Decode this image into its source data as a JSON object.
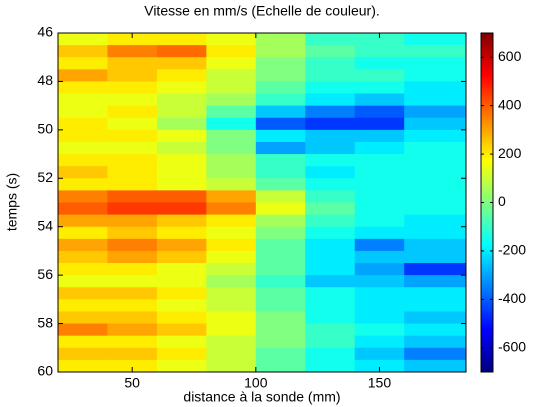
{
  "chart_data": {
    "type": "heatmap",
    "title": "Vitesse en mm/s (Echelle de couleur).",
    "x_label": "distance à la sonde (mm)",
    "y_label": "temps (s)",
    "colormap": "jet",
    "x": [
      30,
      50,
      70,
      90,
      110,
      130,
      150,
      170
    ],
    "y": [
      46.25,
      46.75,
      47.25,
      47.75,
      48.25,
      48.75,
      49.25,
      49.75,
      50.25,
      50.75,
      51.25,
      51.75,
      52.25,
      52.75,
      53.25,
      53.75,
      54.25,
      54.75,
      55.25,
      55.75,
      56.25,
      56.75,
      57.25,
      57.75,
      58.25,
      58.75,
      59.25,
      59.75
    ],
    "values": [
      [
        150,
        200,
        200,
        150,
        50,
        -100,
        -100,
        -150
      ],
      [
        250,
        350,
        380,
        200,
        50,
        -50,
        -100,
        -100
      ],
      [
        200,
        250,
        250,
        150,
        0,
        -100,
        -150,
        -150
      ],
      [
        300,
        250,
        200,
        100,
        0,
        -100,
        -100,
        -150
      ],
      [
        200,
        200,
        150,
        100,
        -50,
        -150,
        -150,
        -200
      ],
      [
        150,
        150,
        100,
        50,
        -100,
        -200,
        -250,
        -200
      ],
      [
        150,
        200,
        100,
        -50,
        -250,
        -350,
        -400,
        -300
      ],
      [
        200,
        150,
        50,
        -150,
        -400,
        -450,
        -450,
        -250
      ],
      [
        200,
        200,
        150,
        0,
        -200,
        -250,
        -250,
        -200
      ],
      [
        150,
        150,
        100,
        0,
        -300,
        -250,
        -200,
        -150
      ],
      [
        200,
        200,
        150,
        50,
        -100,
        -150,
        -150,
        -150
      ],
      [
        250,
        200,
        150,
        50,
        -100,
        -200,
        -150,
        -150
      ],
      [
        200,
        200,
        150,
        100,
        -50,
        -150,
        -150,
        -150
      ],
      [
        350,
        400,
        400,
        300,
        100,
        -100,
        -150,
        -150
      ],
      [
        400,
        450,
        450,
        350,
        150,
        -50,
        -150,
        -150
      ],
      [
        300,
        300,
        250,
        200,
        50,
        -100,
        -150,
        -200
      ],
      [
        200,
        250,
        200,
        150,
        0,
        -150,
        -200,
        -200
      ],
      [
        300,
        350,
        300,
        200,
        -50,
        -200,
        -350,
        -250
      ],
      [
        250,
        300,
        250,
        150,
        -50,
        -200,
        -250,
        -250
      ],
      [
        200,
        200,
        150,
        100,
        -50,
        -200,
        -300,
        -450
      ],
      [
        150,
        150,
        150,
        50,
        -100,
        -250,
        -250,
        -300
      ],
      [
        250,
        250,
        200,
        100,
        -50,
        -150,
        -200,
        -200
      ],
      [
        200,
        200,
        150,
        100,
        -50,
        -150,
        -200,
        -200
      ],
      [
        250,
        250,
        200,
        150,
        0,
        -150,
        -200,
        -250
      ],
      [
        350,
        300,
        250,
        150,
        0,
        -100,
        -150,
        -200
      ],
      [
        200,
        200,
        150,
        100,
        0,
        -100,
        -200,
        -250
      ],
      [
        250,
        250,
        200,
        100,
        -50,
        -150,
        -250,
        -350
      ],
      [
        200,
        200,
        150,
        100,
        -50,
        -150,
        -200,
        -250
      ]
    ],
    "xlim": [
      20,
      185
    ],
    "ylim": [
      46,
      60
    ],
    "y_reversed": true,
    "xticks": [
      50,
      100,
      150
    ],
    "yticks": [
      46,
      48,
      50,
      52,
      54,
      56,
      58,
      60
    ],
    "clim": [
      -700,
      700
    ],
    "cticks": [
      -600,
      -400,
      -200,
      0,
      200,
      400,
      600
    ]
  }
}
